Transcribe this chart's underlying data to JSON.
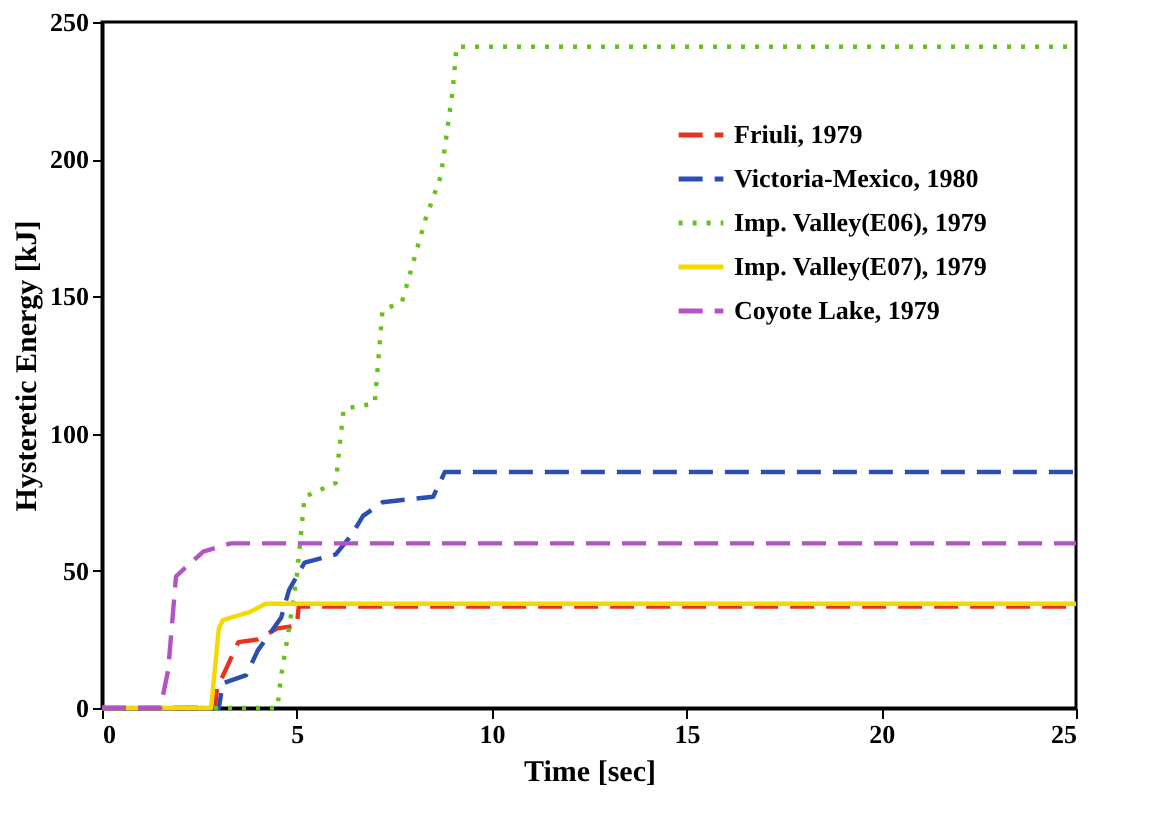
{
  "chart_data": {
    "type": "line",
    "xlabel": "Time [sec]",
    "ylabel": "Hysteretic Energy [kJ]",
    "xlim": [
      0,
      25
    ],
    "ylim": [
      0,
      250
    ],
    "xticks": [
      0,
      5,
      10,
      15,
      20,
      25
    ],
    "yticks": [
      0,
      50,
      100,
      150,
      200,
      250
    ],
    "grid": false,
    "legend": "top right",
    "marker": "none",
    "series": [
      {
        "name": "Friuli, 1979",
        "color": "#e8321e",
        "line_style": "dashed",
        "x": [
          0,
          2.9,
          2.95,
          3.5,
          4,
          4.5,
          5,
          5.05,
          25
        ],
        "values": [
          0,
          0,
          7,
          24,
          25,
          29,
          30,
          37,
          37
        ]
      },
      {
        "name": "Victoria-Mexico, 1980",
        "color": "#2a4fb0",
        "line_style": "dashed",
        "x": [
          0,
          3.0,
          3.1,
          3.7,
          4,
          4.6,
          4.8,
          5.2,
          6,
          6.4,
          6.7,
          7.2,
          8.5,
          8.8,
          25
        ],
        "values": [
          0,
          0,
          9,
          12,
          21,
          33,
          43,
          53,
          56,
          63,
          70,
          75,
          77,
          86,
          86
        ]
      },
      {
        "name": "Imp. Valley(E06), 1979",
        "color": "#66c21a",
        "line_style": "dotted",
        "x": [
          0,
          4.5,
          4.6,
          4.8,
          5,
          5.2,
          6,
          6.2,
          7,
          7.2,
          7.7,
          8.3,
          8.7,
          9,
          9.1,
          25
        ],
        "values": [
          0,
          0,
          12,
          29,
          48,
          77,
          82,
          109,
          111,
          145,
          148,
          178,
          194,
          225,
          241,
          241
        ]
      },
      {
        "name": "Imp. Valley(E07), 1979",
        "color": "#f5d800",
        "line_style": "solid",
        "x": [
          0,
          2.8,
          3.0,
          3.1,
          3.8,
          4.2,
          25
        ],
        "values": [
          0,
          0,
          29,
          32,
          35,
          38,
          38
        ]
      },
      {
        "name": "Coyote Lake, 1979",
        "color": "#b452c8",
        "line_style": "dashed",
        "x": [
          0,
          1.5,
          1.7,
          1.9,
          2.6,
          3.3,
          25
        ],
        "values": [
          0,
          0,
          14,
          48,
          57,
          60,
          60
        ]
      }
    ]
  }
}
